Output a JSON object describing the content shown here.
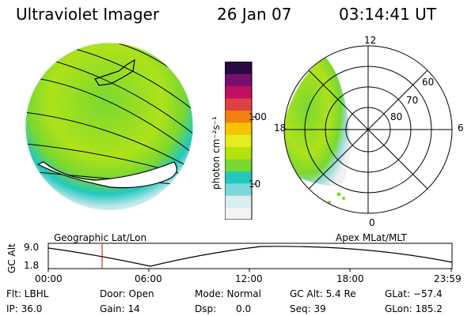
{
  "header": {
    "instrument": "Ultraviolet Imager",
    "date": "26 Jan 07",
    "time": "03:14:41 UT"
  },
  "colorbar": {
    "unit_label": "photon cm⁻²s⁻¹",
    "tick_100": "100",
    "tick_10": "10",
    "colors": [
      "#f3f3f3",
      "#d9eef0",
      "#7bd8d8",
      "#22c8c0",
      "#7ad830",
      "#b6e20c",
      "#e6ec20",
      "#f5c400",
      "#f08010",
      "#e04040",
      "#c01060",
      "#7a106e",
      "#2a0a40"
    ]
  },
  "polar": {
    "mlt_12": "12",
    "mlt_18": "18",
    "mlt_6": "6",
    "mlt_0": "0",
    "lat_60": "60",
    "lat_70": "70",
    "lat_80": "80"
  },
  "geo_label": "Geographic Lat/Lon",
  "apex_label": "Apex MLat/MLT",
  "altitude_plot": {
    "y_axis_label": "GC Alt",
    "y_high": "9.0",
    "y_low": "1.8",
    "x_ticks": [
      "00:00",
      "06:00",
      "12:00",
      "18:00",
      "23:59"
    ]
  },
  "status": {
    "flt": "Flt: LBHL",
    "door": "Door: Open",
    "mode": "Mode: Normal",
    "gc_alt": "GC Alt: 5.4 Re",
    "glat": "GLat: −57.4",
    "ip": "IP: 36.0",
    "gain": "Gain: 14",
    "dsp_label": "Dsp:",
    "dsp_value": "0.0",
    "seq": "Seq: 39",
    "glon": "GLon: 185.2"
  }
}
